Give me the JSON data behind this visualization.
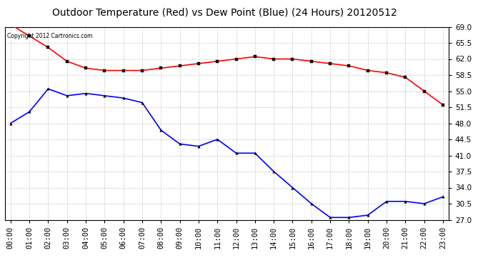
{
  "title": "Outdoor Temperature (Red) vs Dew Point (Blue) (24 Hours) 20120512",
  "copyright_text": "Copyright 2012 Cartronics.com",
  "x_labels": [
    "00:00",
    "01:00",
    "02:00",
    "03:00",
    "04:00",
    "05:00",
    "06:00",
    "07:00",
    "08:00",
    "09:00",
    "10:00",
    "11:00",
    "12:00",
    "13:00",
    "14:00",
    "15:00",
    "16:00",
    "17:00",
    "18:00",
    "19:00",
    "20:00",
    "21:00",
    "22:00",
    "23:00"
  ],
  "temp_red": [
    69.5,
    67.0,
    64.5,
    61.5,
    60.0,
    59.5,
    59.5,
    59.5,
    60.0,
    60.5,
    61.0,
    61.5,
    62.0,
    62.5,
    62.0,
    62.0,
    61.5,
    61.0,
    60.5,
    59.5,
    59.0,
    58.0,
    55.0,
    52.0
  ],
  "dew_blue": [
    48.0,
    50.5,
    55.5,
    54.0,
    54.5,
    54.0,
    53.5,
    52.5,
    46.5,
    43.5,
    43.0,
    44.5,
    41.5,
    41.5,
    37.5,
    34.0,
    30.5,
    27.5,
    27.5,
    28.0,
    31.0,
    31.0,
    30.5,
    32.0
  ],
  "ylim_min": 27.0,
  "ylim_max": 69.0,
  "yticks": [
    27.0,
    30.5,
    34.0,
    37.5,
    41.0,
    44.5,
    48.0,
    51.5,
    55.0,
    58.5,
    62.0,
    65.5,
    69.0
  ],
  "bg_color": "#ffffff",
  "grid_color": "#c8c8c8",
  "line_color_red": "#ff0000",
  "line_color_blue": "#0000ff",
  "title_fontsize": 10,
  "tick_fontsize": 7.5,
  "copyright_fontsize": 5.5
}
